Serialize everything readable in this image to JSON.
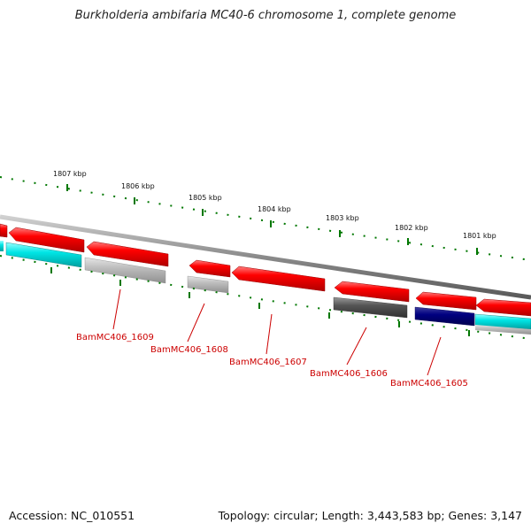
{
  "title": "Burkholderia ambifaria MC40-6 chromosome 1, complete genome",
  "footer": {
    "accession": "Accession: NC_010551",
    "summary": "Topology: circular; Length: 3,443,583 bp; Genes: 3,147"
  },
  "scale_labels": [
    "1807 kbp",
    "1806 kbp",
    "1805 kbp",
    "1804 kbp",
    "1803 kbp",
    "1802 kbp",
    "1801 kbp"
  ],
  "gene_labels": [
    "BamMC406_1609",
    "BamMC406_1608",
    "BamMC406_1607",
    "BamMC406_1606",
    "BamMC406_1605"
  ],
  "colors": {
    "backbone": "#8a8a8a",
    "gene_red": "#ff0000",
    "gene_cyan": "#00e0e0",
    "gene_teal": "#00aaaa",
    "gene_lightgray": "#bdbdbd",
    "gene_darkgray": "#555555",
    "gene_navy": "#000080",
    "tick_green": "#007700",
    "label_red": "#cc0000"
  }
}
